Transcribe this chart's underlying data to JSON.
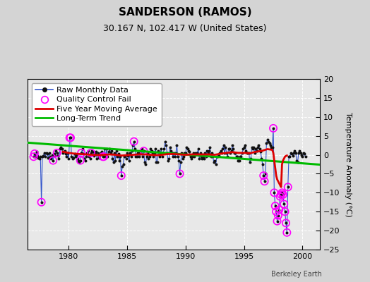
{
  "title": "SANDERSON (RAMOS)",
  "subtitle": "30.167 N, 102.417 W (United States)",
  "ylabel": "Temperature Anomaly (°C)",
  "watermark": "Berkeley Earth",
  "xlim": [
    1976.5,
    2001.5
  ],
  "ylim": [
    -25,
    20
  ],
  "yticks": [
    -25,
    -20,
    -15,
    -10,
    -5,
    0,
    5,
    10,
    15,
    20
  ],
  "xticks": [
    1980,
    1985,
    1990,
    1995,
    2000
  ],
  "bg_color": "#e8e8e8",
  "fig_color": "#d4d4d4",
  "raw_color": "#3355cc",
  "dot_color": "#111111",
  "qc_color": "#ff00ff",
  "moving_avg_color": "#dd0000",
  "trend_color": "#00bb00",
  "raw_monthly": [
    [
      1977.0,
      -0.5
    ],
    [
      1977.083,
      0.3
    ],
    [
      1977.167,
      -0.5
    ],
    [
      1977.25,
      0.8
    ],
    [
      1977.333,
      -0.3
    ],
    [
      1977.417,
      -0.8
    ],
    [
      1977.5,
      -1.0
    ],
    [
      1977.583,
      -0.5
    ],
    [
      1977.667,
      -12.5
    ],
    [
      1977.75,
      -0.5
    ],
    [
      1977.833,
      -0.3
    ],
    [
      1977.917,
      0.5
    ],
    [
      1978.0,
      -0.5
    ],
    [
      1978.083,
      0.5
    ],
    [
      1978.167,
      0.3
    ],
    [
      1978.25,
      -0.8
    ],
    [
      1978.333,
      0.5
    ],
    [
      1978.417,
      -0.5
    ],
    [
      1978.5,
      -1.0
    ],
    [
      1978.583,
      0.0
    ],
    [
      1978.667,
      -1.5
    ],
    [
      1978.75,
      0.3
    ],
    [
      1978.833,
      -0.3
    ],
    [
      1978.917,
      1.0
    ],
    [
      1979.0,
      0.5
    ],
    [
      1979.083,
      -0.3
    ],
    [
      1979.167,
      -1.0
    ],
    [
      1979.25,
      1.5
    ],
    [
      1979.333,
      2.0
    ],
    [
      1979.417,
      1.5
    ],
    [
      1979.5,
      0.5
    ],
    [
      1979.583,
      0.8
    ],
    [
      1979.667,
      1.0
    ],
    [
      1979.75,
      0.3
    ],
    [
      1979.833,
      -0.5
    ],
    [
      1979.917,
      0.5
    ],
    [
      1980.0,
      -1.0
    ],
    [
      1980.083,
      4.5
    ],
    [
      1980.167,
      4.5
    ],
    [
      1980.25,
      -0.5
    ],
    [
      1980.333,
      -1.0
    ],
    [
      1980.417,
      -0.8
    ],
    [
      1980.5,
      0.3
    ],
    [
      1980.583,
      -0.5
    ],
    [
      1980.667,
      0.0
    ],
    [
      1980.75,
      -1.0
    ],
    [
      1980.833,
      -1.5
    ],
    [
      1980.917,
      -2.0
    ],
    [
      1981.0,
      -1.5
    ],
    [
      1981.083,
      0.5
    ],
    [
      1981.167,
      1.5
    ],
    [
      1981.25,
      0.3
    ],
    [
      1981.333,
      -1.0
    ],
    [
      1981.417,
      -1.5
    ],
    [
      1981.5,
      -0.5
    ],
    [
      1981.583,
      0.5
    ],
    [
      1981.667,
      1.0
    ],
    [
      1981.75,
      -0.5
    ],
    [
      1981.833,
      -1.0
    ],
    [
      1981.917,
      0.5
    ],
    [
      1982.0,
      1.0
    ],
    [
      1982.083,
      0.8
    ],
    [
      1982.167,
      -0.3
    ],
    [
      1982.25,
      0.5
    ],
    [
      1982.333,
      0.8
    ],
    [
      1982.417,
      -1.0
    ],
    [
      1982.5,
      0.5
    ],
    [
      1982.583,
      -0.8
    ],
    [
      1982.667,
      -0.3
    ],
    [
      1982.75,
      0.5
    ],
    [
      1982.833,
      0.8
    ],
    [
      1982.917,
      -0.5
    ],
    [
      1983.0,
      -0.5
    ],
    [
      1983.083,
      1.5
    ],
    [
      1983.167,
      -0.5
    ],
    [
      1983.25,
      1.5
    ],
    [
      1983.333,
      -0.5
    ],
    [
      1983.417,
      0.8
    ],
    [
      1983.5,
      1.5
    ],
    [
      1983.583,
      0.5
    ],
    [
      1983.667,
      1.0
    ],
    [
      1983.75,
      -1.0
    ],
    [
      1983.833,
      -2.0
    ],
    [
      1983.917,
      0.5
    ],
    [
      1984.0,
      -1.5
    ],
    [
      1984.083,
      1.0
    ],
    [
      1984.167,
      -0.5
    ],
    [
      1984.25,
      0.3
    ],
    [
      1984.333,
      -1.5
    ],
    [
      1984.417,
      -0.5
    ],
    [
      1984.5,
      -5.5
    ],
    [
      1984.583,
      -3.0
    ],
    [
      1984.667,
      -2.5
    ],
    [
      1984.75,
      -0.5
    ],
    [
      1984.833,
      -0.3
    ],
    [
      1984.917,
      -1.0
    ],
    [
      1985.0,
      0.5
    ],
    [
      1985.083,
      -0.3
    ],
    [
      1985.167,
      -1.5
    ],
    [
      1985.25,
      0.5
    ],
    [
      1985.333,
      -0.5
    ],
    [
      1985.417,
      1.0
    ],
    [
      1985.5,
      2.5
    ],
    [
      1985.583,
      3.5
    ],
    [
      1985.667,
      1.5
    ],
    [
      1985.75,
      -0.5
    ],
    [
      1985.833,
      -0.5
    ],
    [
      1985.917,
      0.5
    ],
    [
      1986.0,
      -0.5
    ],
    [
      1986.083,
      0.5
    ],
    [
      1986.167,
      0.3
    ],
    [
      1986.25,
      1.5
    ],
    [
      1986.333,
      -0.5
    ],
    [
      1986.417,
      1.0
    ],
    [
      1986.5,
      -2.0
    ],
    [
      1986.583,
      -2.5
    ],
    [
      1986.667,
      -0.5
    ],
    [
      1986.75,
      0.5
    ],
    [
      1986.833,
      -1.0
    ],
    [
      1986.917,
      -0.5
    ],
    [
      1987.0,
      1.5
    ],
    [
      1987.083,
      1.0
    ],
    [
      1987.167,
      0.5
    ],
    [
      1987.25,
      -0.5
    ],
    [
      1987.333,
      0.5
    ],
    [
      1987.417,
      1.5
    ],
    [
      1987.5,
      -2.0
    ],
    [
      1987.583,
      -2.0
    ],
    [
      1987.667,
      1.0
    ],
    [
      1987.75,
      -0.5
    ],
    [
      1987.833,
      0.5
    ],
    [
      1987.917,
      1.5
    ],
    [
      1988.0,
      -0.5
    ],
    [
      1988.083,
      0.5
    ],
    [
      1988.167,
      1.5
    ],
    [
      1988.25,
      3.5
    ],
    [
      1988.333,
      2.5
    ],
    [
      1988.417,
      0.5
    ],
    [
      1988.5,
      -1.5
    ],
    [
      1988.583,
      -1.0
    ],
    [
      1988.667,
      2.0
    ],
    [
      1988.75,
      1.0
    ],
    [
      1988.833,
      0.5
    ],
    [
      1988.917,
      -0.5
    ],
    [
      1989.0,
      0.5
    ],
    [
      1989.083,
      -0.5
    ],
    [
      1989.167,
      0.5
    ],
    [
      1989.25,
      2.5
    ],
    [
      1989.333,
      -0.5
    ],
    [
      1989.417,
      -1.5
    ],
    [
      1989.5,
      -5.0
    ],
    [
      1989.583,
      -2.0
    ],
    [
      1989.667,
      0.5
    ],
    [
      1989.75,
      -1.0
    ],
    [
      1989.833,
      -0.5
    ],
    [
      1989.917,
      0.5
    ],
    [
      1990.0,
      0.5
    ],
    [
      1990.083,
      2.0
    ],
    [
      1990.167,
      1.5
    ],
    [
      1990.25,
      1.0
    ],
    [
      1990.333,
      0.8
    ],
    [
      1990.417,
      -0.5
    ],
    [
      1990.5,
      -1.0
    ],
    [
      1990.583,
      -0.5
    ],
    [
      1990.667,
      0.5
    ],
    [
      1990.75,
      -0.5
    ],
    [
      1990.833,
      0.5
    ],
    [
      1990.917,
      0.3
    ],
    [
      1991.0,
      0.5
    ],
    [
      1991.083,
      1.5
    ],
    [
      1991.167,
      -1.0
    ],
    [
      1991.25,
      0.5
    ],
    [
      1991.333,
      -0.5
    ],
    [
      1991.417,
      -1.0
    ],
    [
      1991.5,
      -0.5
    ],
    [
      1991.583,
      -1.0
    ],
    [
      1991.667,
      0.5
    ],
    [
      1991.75,
      -0.5
    ],
    [
      1991.833,
      1.0
    ],
    [
      1991.917,
      0.5
    ],
    [
      1992.0,
      1.0
    ],
    [
      1992.083,
      2.0
    ],
    [
      1992.167,
      -0.5
    ],
    [
      1992.25,
      0.5
    ],
    [
      1992.333,
      -0.5
    ],
    [
      1992.417,
      -2.0
    ],
    [
      1992.5,
      -1.5
    ],
    [
      1992.583,
      -2.5
    ],
    [
      1992.667,
      -0.5
    ],
    [
      1992.75,
      -0.5
    ],
    [
      1992.833,
      -0.3
    ],
    [
      1992.917,
      0.5
    ],
    [
      1993.0,
      1.0
    ],
    [
      1993.083,
      0.5
    ],
    [
      1993.167,
      1.5
    ],
    [
      1993.25,
      2.5
    ],
    [
      1993.333,
      0.5
    ],
    [
      1993.417,
      2.0
    ],
    [
      1993.5,
      0.5
    ],
    [
      1993.583,
      -0.5
    ],
    [
      1993.667,
      1.5
    ],
    [
      1993.75,
      1.5
    ],
    [
      1993.833,
      0.5
    ],
    [
      1993.917,
      1.0
    ],
    [
      1994.0,
      2.5
    ],
    [
      1994.083,
      1.5
    ],
    [
      1994.167,
      0.5
    ],
    [
      1994.25,
      0.5
    ],
    [
      1994.333,
      -0.5
    ],
    [
      1994.417,
      -0.5
    ],
    [
      1994.5,
      -1.5
    ],
    [
      1994.583,
      -1.5
    ],
    [
      1994.667,
      -0.5
    ],
    [
      1994.75,
      -0.5
    ],
    [
      1994.833,
      0.5
    ],
    [
      1994.917,
      1.5
    ],
    [
      1995.0,
      2.0
    ],
    [
      1995.083,
      2.5
    ],
    [
      1995.167,
      1.0
    ],
    [
      1995.25,
      0.5
    ],
    [
      1995.333,
      0.5
    ],
    [
      1995.417,
      0.5
    ],
    [
      1995.5,
      -2.0
    ],
    [
      1995.583,
      -1.0
    ],
    [
      1995.667,
      2.0
    ],
    [
      1995.75,
      1.5
    ],
    [
      1995.833,
      2.0
    ],
    [
      1995.917,
      0.5
    ],
    [
      1996.0,
      1.5
    ],
    [
      1996.083,
      1.0
    ],
    [
      1996.167,
      2.0
    ],
    [
      1996.25,
      2.5
    ],
    [
      1996.333,
      1.5
    ],
    [
      1996.417,
      0.8
    ],
    [
      1996.5,
      -1.0
    ],
    [
      1996.583,
      -2.5
    ],
    [
      1996.667,
      -5.5
    ],
    [
      1996.75,
      -7.0
    ],
    [
      1996.833,
      -5.0
    ],
    [
      1996.917,
      3.0
    ],
    [
      1997.0,
      4.0
    ],
    [
      1997.083,
      3.5
    ],
    [
      1997.167,
      3.0
    ],
    [
      1997.25,
      2.5
    ],
    [
      1997.333,
      2.0
    ],
    [
      1997.417,
      2.0
    ],
    [
      1997.5,
      7.0
    ],
    [
      1997.583,
      -10.0
    ],
    [
      1997.667,
      -13.5
    ],
    [
      1997.75,
      -15.0
    ],
    [
      1997.833,
      -17.5
    ],
    [
      1997.917,
      -16.0
    ],
    [
      1998.0,
      -14.5
    ],
    [
      1998.083,
      -11.0
    ],
    [
      1998.167,
      -10.5
    ],
    [
      1998.25,
      -10.0
    ],
    [
      1998.333,
      -10.5
    ],
    [
      1998.417,
      -13.0
    ],
    [
      1998.5,
      -15.0
    ],
    [
      1998.583,
      -18.0
    ],
    [
      1998.667,
      -20.5
    ],
    [
      1998.75,
      -8.5
    ],
    [
      1998.833,
      -0.5
    ],
    [
      1998.917,
      -0.5
    ],
    [
      1999.0,
      0.5
    ],
    [
      1999.083,
      0.3
    ],
    [
      1999.167,
      -0.3
    ],
    [
      1999.25,
      0.5
    ],
    [
      1999.333,
      1.0
    ],
    [
      1999.417,
      0.5
    ],
    [
      1999.5,
      -1.5
    ],
    [
      1999.583,
      -2.0
    ],
    [
      1999.667,
      0.5
    ],
    [
      1999.75,
      1.0
    ],
    [
      1999.833,
      0.5
    ],
    [
      1999.917,
      0.0
    ],
    [
      2000.0,
      -0.5
    ],
    [
      2000.083,
      0.5
    ],
    [
      2000.167,
      0.3
    ],
    [
      2000.25,
      -0.5
    ]
  ],
  "qc_fail": [
    [
      1977.667,
      -12.5
    ],
    [
      1977.0,
      -0.5
    ],
    [
      1977.083,
      0.3
    ],
    [
      1978.667,
      -1.5
    ],
    [
      1979.0,
      0.5
    ],
    [
      1980.083,
      4.5
    ],
    [
      1980.167,
      4.5
    ],
    [
      1981.0,
      -1.5
    ],
    [
      1981.083,
      0.5
    ],
    [
      1981.917,
      0.5
    ],
    [
      1982.917,
      -0.5
    ],
    [
      1983.0,
      -0.5
    ],
    [
      1984.5,
      -5.5
    ],
    [
      1985.583,
      3.5
    ],
    [
      1986.417,
      1.0
    ],
    [
      1989.5,
      -5.0
    ],
    [
      1996.667,
      -5.5
    ],
    [
      1996.75,
      -7.0
    ],
    [
      1997.5,
      7.0
    ],
    [
      1997.583,
      -10.0
    ],
    [
      1997.667,
      -13.5
    ],
    [
      1997.75,
      -15.0
    ],
    [
      1997.833,
      -17.5
    ],
    [
      1997.917,
      -16.0
    ],
    [
      1998.0,
      -14.5
    ],
    [
      1998.083,
      -11.0
    ],
    [
      1998.167,
      -10.5
    ],
    [
      1998.25,
      -10.0
    ],
    [
      1998.333,
      -10.5
    ],
    [
      1998.417,
      -13.0
    ],
    [
      1998.5,
      -15.0
    ],
    [
      1998.583,
      -18.0
    ],
    [
      1998.667,
      -20.5
    ],
    [
      1998.75,
      -8.5
    ]
  ],
  "trend_line": [
    [
      1976.5,
      3.2
    ],
    [
      2001.5,
      -2.6
    ]
  ],
  "moving_avg": [
    [
      1979.5,
      0.8
    ],
    [
      1980.0,
      0.5
    ],
    [
      1980.5,
      0.3
    ],
    [
      1981.0,
      0.2
    ],
    [
      1981.5,
      0.1
    ],
    [
      1982.0,
      0.0
    ],
    [
      1982.5,
      -0.1
    ],
    [
      1983.0,
      0.0
    ],
    [
      1983.5,
      0.1
    ],
    [
      1984.0,
      0.0
    ],
    [
      1984.5,
      -0.2
    ],
    [
      1985.0,
      -0.1
    ],
    [
      1985.5,
      0.0
    ],
    [
      1986.0,
      0.1
    ],
    [
      1986.5,
      0.1
    ],
    [
      1987.0,
      0.0
    ],
    [
      1987.5,
      -0.1
    ],
    [
      1988.0,
      0.0
    ],
    [
      1988.5,
      0.2
    ],
    [
      1989.0,
      0.2
    ],
    [
      1989.5,
      0.1
    ],
    [
      1990.0,
      0.0
    ],
    [
      1990.5,
      0.1
    ],
    [
      1991.0,
      0.1
    ],
    [
      1991.5,
      0.1
    ],
    [
      1992.0,
      0.1
    ],
    [
      1992.5,
      0.0
    ],
    [
      1993.0,
      0.3
    ],
    [
      1993.5,
      0.5
    ],
    [
      1994.0,
      0.7
    ],
    [
      1994.5,
      0.5
    ],
    [
      1995.0,
      0.5
    ],
    [
      1995.5,
      0.4
    ],
    [
      1996.0,
      0.8
    ],
    [
      1996.5,
      1.0
    ],
    [
      1997.0,
      1.5
    ],
    [
      1997.417,
      1.3
    ],
    [
      1997.5,
      0.5
    ],
    [
      1997.583,
      -1.5
    ],
    [
      1997.667,
      -3.5
    ],
    [
      1997.75,
      -5.5
    ],
    [
      1997.833,
      -6.5
    ],
    [
      1997.917,
      -7.0
    ],
    [
      1998.0,
      -7.5
    ],
    [
      1998.083,
      -8.0
    ],
    [
      1998.167,
      -8.5
    ],
    [
      1998.25,
      -2.5
    ],
    [
      1998.333,
      -1.5
    ],
    [
      1998.417,
      -1.0
    ],
    [
      1998.5,
      -0.5
    ],
    [
      1998.583,
      -0.3
    ],
    [
      1998.667,
      -0.2
    ]
  ],
  "title_fontsize": 11,
  "subtitle_fontsize": 9,
  "legend_fontsize": 8,
  "tick_fontsize": 8,
  "ylabel_fontsize": 8
}
